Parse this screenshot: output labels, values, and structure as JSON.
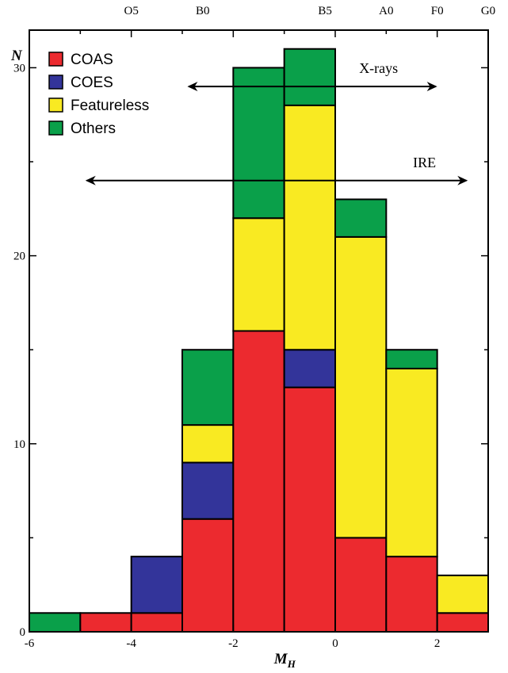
{
  "chart_data": {
    "type": "bar",
    "stacked": true,
    "xlabel": "M",
    "xlabel_sub": "H",
    "ylabel": "N",
    "xlim": [
      -6,
      3
    ],
    "ylim": [
      0,
      32
    ],
    "x_ticks": [
      -6,
      -4,
      -2,
      0,
      2
    ],
    "y_ticks": [
      0,
      10,
      20,
      30
    ],
    "top_axis": {
      "labels": [
        {
          "text": "O5",
          "x": -4
        },
        {
          "text": "B0",
          "x": -2.6
        },
        {
          "text": "B5",
          "x": -0.2
        },
        {
          "text": "A0",
          "x": 1
        },
        {
          "text": "F0",
          "x": 2
        },
        {
          "text": "G0",
          "x": 3
        }
      ]
    },
    "bins": [
      {
        "x0": -6,
        "x1": -5
      },
      {
        "x0": -5,
        "x1": -4
      },
      {
        "x0": -4,
        "x1": -3
      },
      {
        "x0": -3,
        "x1": -2
      },
      {
        "x0": -2,
        "x1": -1
      },
      {
        "x0": -1,
        "x1": 0
      },
      {
        "x0": 0,
        "x1": 1
      },
      {
        "x0": 1,
        "x1": 2
      },
      {
        "x0": 2,
        "x1": 3
      }
    ],
    "series": [
      {
        "name": "COAS",
        "color": "#ec2a2f",
        "values": [
          0,
          1,
          1,
          6,
          16,
          13,
          5,
          4,
          1
        ]
      },
      {
        "name": "COES",
        "color": "#33349a",
        "values": [
          0,
          0,
          3,
          3,
          0,
          2,
          0,
          0,
          0
        ]
      },
      {
        "name": "Featureless",
        "color": "#f9ea22",
        "values": [
          0,
          0,
          0,
          2,
          6,
          13,
          16,
          10,
          2
        ]
      },
      {
        "name": "Others",
        "color": "#0aa04a",
        "values": [
          1,
          0,
          0,
          4,
          8,
          3,
          2,
          1,
          0
        ]
      }
    ],
    "legend": {
      "position": "top-left"
    },
    "annotations": [
      {
        "text": "X-rays",
        "x_from": -2.9,
        "x_to": 2,
        "y": 29
      },
      {
        "text": "IRE",
        "x_from": -4.9,
        "x_to": 2.6,
        "y": 24
      }
    ]
  }
}
